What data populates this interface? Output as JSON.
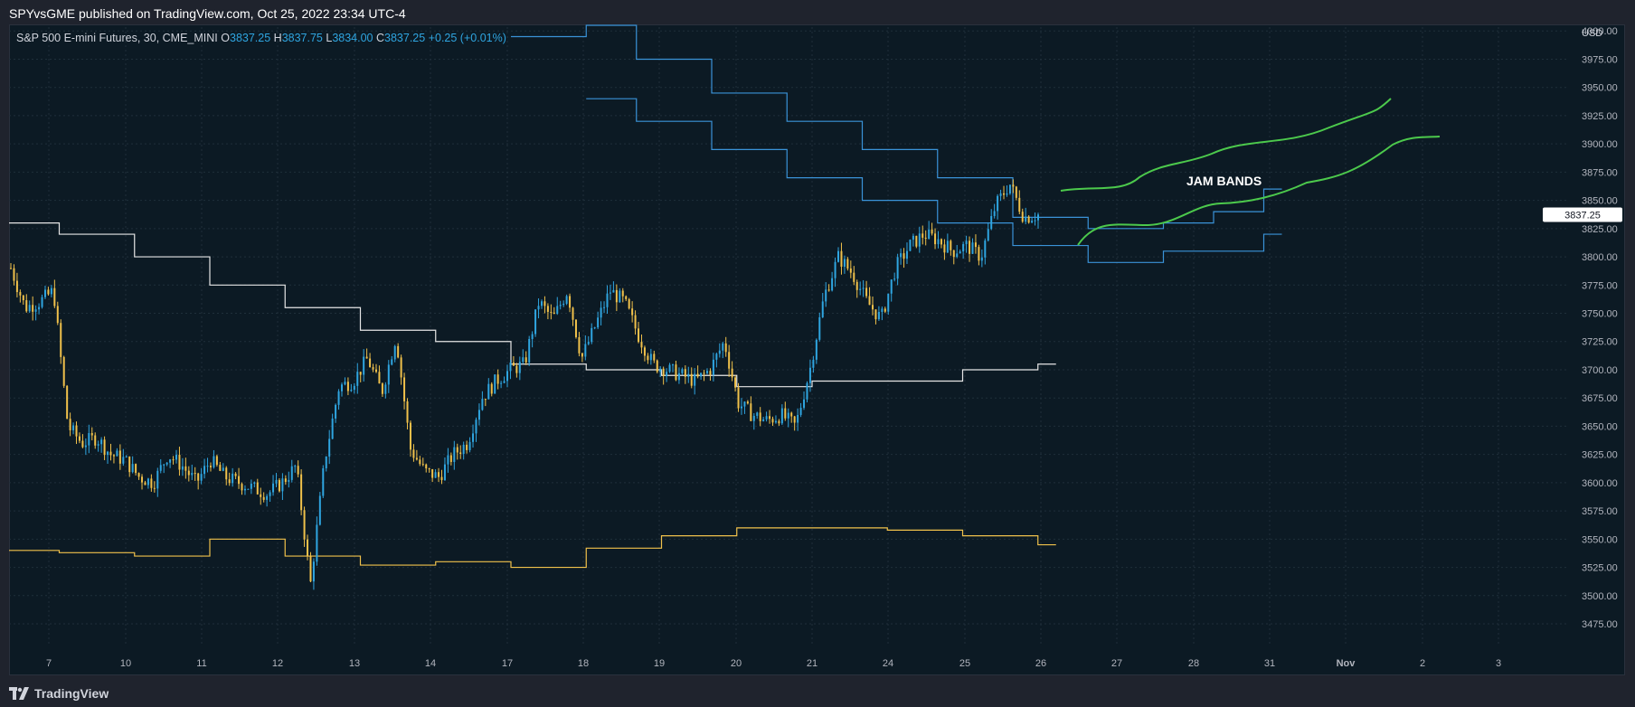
{
  "header": {
    "published": "SPYvsGME published on TradingView.com, Oct 25, 2022 23:34 UTC-4"
  },
  "footer": {
    "brand": "TradingView"
  },
  "legend": {
    "symbol": "S&P 500 E-mini Futures, 30, CME_MINI",
    "o_label": "O",
    "o_value": "3837.25",
    "h_label": "H",
    "h_value": "3837.75",
    "l_label": "L",
    "l_value": "3834.00",
    "c_label": "C",
    "c_value": "3837.25",
    "change": "+0.25 (+0.01%)"
  },
  "colors": {
    "background": "#0c1a24",
    "up": "#2fa5e0",
    "down": "#f0c14b",
    "band": "#3a93d8",
    "mid": "#e6e6e6",
    "low": "#f0c14b",
    "annotation": "#4cc94c"
  },
  "chart_data": {
    "type": "candlestick",
    "currency": "USD",
    "y_axis": {
      "ticks": [
        4000,
        3975,
        3950,
        3925,
        3900,
        3875,
        3850,
        3825,
        3800,
        3775,
        3750,
        3725,
        3700,
        3675,
        3650,
        3625,
        3600,
        3575,
        3550,
        3525,
        3500,
        3475
      ],
      "tick_labels": [
        "4000.00",
        "3975.00",
        "3950.00",
        "3925.00",
        "3900.00",
        "3875.00",
        "3850.00",
        "3825.00",
        "3800.00",
        "3775.00",
        "3750.00",
        "3725.00",
        "3700.00",
        "3675.00",
        "3650.00",
        "3625.00",
        "3600.00",
        "3575.00",
        "3550.00",
        "3525.00",
        "3500.00",
        "3475.00"
      ],
      "ylim": [
        3455,
        4005
      ]
    },
    "x_axis": {
      "labels": [
        "7",
        "10",
        "11",
        "12",
        "13",
        "14",
        "17",
        "18",
        "19",
        "20",
        "21",
        "24",
        "25",
        "26",
        "27",
        "28",
        "31",
        "Nov",
        "2",
        "3"
      ]
    },
    "last_price": "3837.25",
    "grid": true,
    "annotation": "JAM BANDS",
    "close_path": [
      [
        0,
        3790
      ],
      [
        1,
        3755
      ],
      [
        2,
        3760
      ],
      [
        3,
        3770
      ],
      [
        4,
        3650
      ],
      [
        5,
        3635
      ],
      [
        6,
        3640
      ],
      [
        7,
        3625
      ],
      [
        8,
        3620
      ],
      [
        9,
        3605
      ],
      [
        10,
        3600
      ],
      [
        11,
        3625
      ],
      [
        12,
        3615
      ],
      [
        13,
        3600
      ],
      [
        14,
        3620
      ],
      [
        15,
        3605
      ],
      [
        16,
        3600
      ],
      [
        17,
        3595
      ],
      [
        18,
        3590
      ],
      [
        19,
        3600
      ],
      [
        20,
        3615
      ],
      [
        21,
        3510
      ],
      [
        22,
        3620
      ],
      [
        23,
        3685
      ],
      [
        24,
        3690
      ],
      [
        25,
        3710
      ],
      [
        26,
        3680
      ],
      [
        27,
        3730
      ],
      [
        28,
        3630
      ],
      [
        29,
        3610
      ],
      [
        30,
        3605
      ],
      [
        31,
        3625
      ],
      [
        32,
        3635
      ],
      [
        33,
        3675
      ],
      [
        34,
        3690
      ],
      [
        35,
        3700
      ],
      [
        36,
        3705
      ],
      [
        37,
        3760
      ],
      [
        38,
        3745
      ],
      [
        39,
        3770
      ],
      [
        40,
        3710
      ],
      [
        41,
        3740
      ],
      [
        42,
        3770
      ],
      [
        43,
        3760
      ],
      [
        44,
        3730
      ],
      [
        45,
        3705
      ],
      [
        46,
        3700
      ],
      [
        47,
        3695
      ],
      [
        48,
        3690
      ],
      [
        49,
        3700
      ],
      [
        50,
        3725
      ],
      [
        51,
        3670
      ],
      [
        52,
        3660
      ],
      [
        53,
        3655
      ],
      [
        54,
        3660
      ],
      [
        55,
        3650
      ],
      [
        56,
        3700
      ],
      [
        57,
        3765
      ],
      [
        58,
        3800
      ],
      [
        59,
        3785
      ],
      [
        60,
        3760
      ],
      [
        61,
        3745
      ],
      [
        62,
        3790
      ],
      [
        63,
        3810
      ],
      [
        64,
        3820
      ],
      [
        65,
        3815
      ],
      [
        66,
        3805
      ],
      [
        67,
        3810
      ],
      [
        68,
        3800
      ],
      [
        69,
        3845
      ],
      [
        70,
        3865
      ],
      [
        71,
        3835
      ],
      [
        72,
        3837.25
      ]
    ],
    "series": [
      {
        "name": "upper_outer",
        "segments": [
          [
            100,
            3995
          ],
          [
            115,
            4005
          ],
          [
            125,
            3975
          ],
          [
            140,
            3945
          ],
          [
            155,
            3920
          ],
          [
            170,
            3895
          ],
          [
            185,
            3870
          ],
          [
            200,
            3835
          ],
          [
            215,
            3825
          ],
          [
            230,
            3830
          ],
          [
            240,
            3840
          ],
          [
            250,
            3860
          ]
        ]
      },
      {
        "name": "upper_inner",
        "segments": [
          [
            115,
            3940
          ],
          [
            125,
            3920
          ],
          [
            140,
            3895
          ],
          [
            155,
            3870
          ],
          [
            170,
            3850
          ],
          [
            185,
            3830
          ],
          [
            200,
            3810
          ],
          [
            215,
            3795
          ],
          [
            230,
            3805
          ],
          [
            240,
            3805
          ],
          [
            250,
            3820
          ]
        ]
      },
      {
        "name": "mid",
        "segments": [
          [
            0,
            3830
          ],
          [
            10,
            3820
          ],
          [
            25,
            3800
          ],
          [
            40,
            3775
          ],
          [
            55,
            3755
          ],
          [
            70,
            3735
          ],
          [
            85,
            3725
          ],
          [
            100,
            3705
          ],
          [
            115,
            3700
          ],
          [
            130,
            3695
          ],
          [
            145,
            3685
          ],
          [
            160,
            3690
          ],
          [
            175,
            3690
          ],
          [
            190,
            3700
          ],
          [
            205,
            3705
          ]
        ]
      },
      {
        "name": "lower",
        "segments": [
          [
            0,
            3540
          ],
          [
            10,
            3538
          ],
          [
            25,
            3535
          ],
          [
            40,
            3550
          ],
          [
            55,
            3535
          ],
          [
            70,
            3527
          ],
          [
            85,
            3530
          ],
          [
            100,
            3525
          ],
          [
            115,
            3542
          ],
          [
            130,
            3553
          ],
          [
            145,
            3560
          ],
          [
            160,
            3560
          ],
          [
            175,
            3558
          ],
          [
            190,
            3553
          ],
          [
            205,
            3545
          ]
        ]
      }
    ]
  }
}
